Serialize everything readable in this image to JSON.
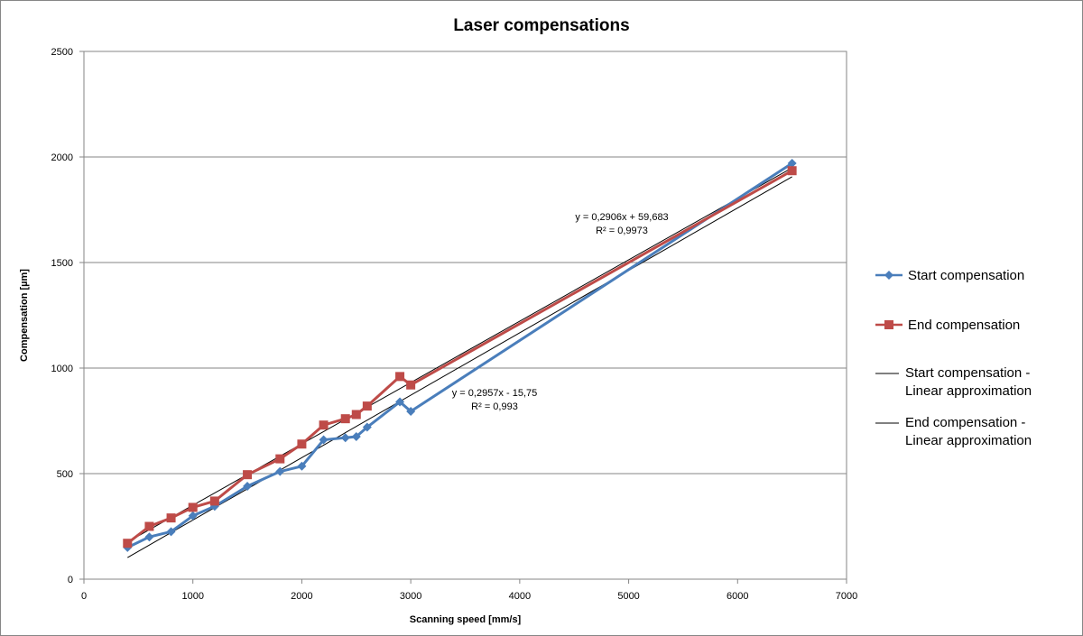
{
  "chart_data": {
    "type": "line",
    "title": "Laser compensations",
    "xlabel": "Scanning speed [mm/s]",
    "ylabel": "Compensation [µm]",
    "xlim": [
      0,
      7000
    ],
    "ylim": [
      0,
      2500
    ],
    "xticks": [
      "0",
      "1000",
      "2000",
      "3000",
      "4000",
      "5000",
      "6000",
      "7000"
    ],
    "yticks": [
      "0",
      "500",
      "1000",
      "1500",
      "2000",
      "2500"
    ],
    "grid": "horizontal",
    "legend_position": "right",
    "series": [
      {
        "name": "Start compensation",
        "color": "#4a7ebb",
        "marker": "diamond",
        "x": [
          400,
          600,
          800,
          1000,
          1200,
          1500,
          1800,
          2000,
          2200,
          2400,
          2500,
          2600,
          2900,
          3000,
          6500
        ],
        "y": [
          150,
          200,
          225,
          300,
          345,
          440,
          510,
          535,
          660,
          670,
          675,
          720,
          840,
          795,
          1970
        ]
      },
      {
        "name": "End compensation",
        "color": "#be4b48",
        "marker": "square",
        "x": [
          400,
          600,
          800,
          1000,
          1200,
          1500,
          1800,
          2000,
          2200,
          2400,
          2500,
          2600,
          2900,
          3000,
          6500
        ],
        "y": [
          170,
          250,
          290,
          340,
          370,
          495,
          570,
          640,
          730,
          760,
          780,
          820,
          960,
          920,
          1935
        ]
      }
    ],
    "trendlines": [
      {
        "name": "Start compensation - Linear approximation",
        "name_lines": [
          "Start compensation -",
          "Linear approximation"
        ],
        "color": "#000000",
        "slope": 0.2957,
        "intercept": -15.75,
        "x_range": [
          400,
          6500
        ],
        "equation": "y = 0,2957x - 15,75",
        "r2": "R² = 0,993"
      },
      {
        "name": "End compensation - Linear approximation",
        "name_lines": [
          "End compensation -",
          "Linear approximation"
        ],
        "color": "#000000",
        "slope": 0.2906,
        "intercept": 59.683,
        "x_range": [
          400,
          6500
        ],
        "equation": "y = 0,2906x + 59,683",
        "r2": "R² = 0,9973"
      }
    ]
  }
}
